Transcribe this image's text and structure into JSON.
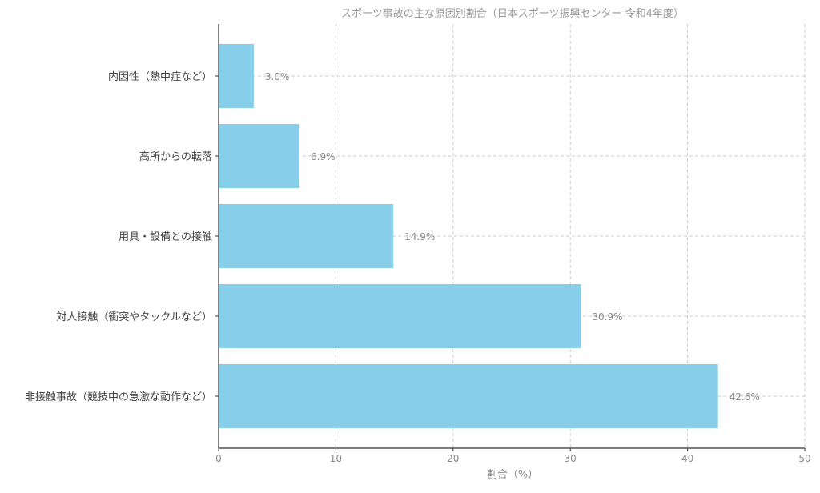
{
  "chart_data": {
    "type": "bar",
    "orientation": "horizontal",
    "title": "スポーツ事故の主な原因別割合（日本スポーツ振興センター 令和4年度）",
    "xlabel": "割合（%）",
    "ylabel": "",
    "categories": [
      "非接触事故（競技中の急激な動作など）",
      "対人接触（衝突やタックルなど）",
      "用具・設備との接触",
      "高所からの転落",
      "内因性（熱中症など）"
    ],
    "values": [
      42.6,
      30.9,
      14.9,
      6.9,
      3.0
    ],
    "value_labels": [
      "42.6%",
      "30.9%",
      "14.9%",
      "6.9%",
      "3.0%"
    ],
    "xlim": [
      0,
      50
    ],
    "xticks": [
      0,
      10,
      20,
      30,
      40,
      50
    ],
    "xtick_labels": [
      "0",
      "10",
      "20",
      "30",
      "40",
      "50"
    ],
    "grid": true,
    "bar_color": "#87CEEB"
  }
}
